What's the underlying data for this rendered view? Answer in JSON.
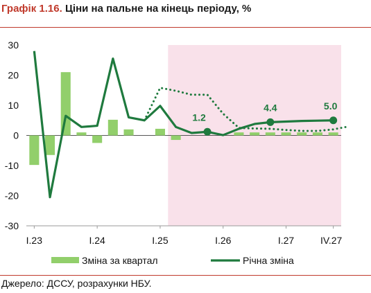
{
  "header": {
    "label": "Графік 1.16.",
    "title": "Ціни на пальне на кінець періоду, %"
  },
  "footer": {
    "source": "Джерело: ДССУ, розрахунки НБУ."
  },
  "colors": {
    "bar": "#92cf6b",
    "line": "#1f7a3e",
    "forecast_bg": "#f9e1ea",
    "rule": "#c0392b"
  },
  "chart_data": {
    "type": "bar+line",
    "ylim": [
      -30,
      30
    ],
    "yticks": [
      -30,
      -20,
      -10,
      0,
      10,
      20,
      30
    ],
    "x_tick_labels": [
      "I.23",
      "I.24",
      "I.25",
      "I.26",
      "I.27",
      "IV.27"
    ],
    "x_tick_positions": [
      0,
      4,
      8,
      12,
      16,
      19
    ],
    "forecast_start_index": 9,
    "series": [
      {
        "name": "Зміна за квартал",
        "kind": "bar",
        "values": [
          -9.8,
          -6.5,
          21.0,
          1.0,
          -2.5,
          5.2,
          2.0,
          0,
          2.2,
          -1.5,
          0,
          0,
          0,
          1.0,
          1.0,
          1.0,
          1.0,
          1.0,
          1.0,
          1.0
        ]
      },
      {
        "name": "Річна зміна",
        "kind": "line",
        "values": [
          28.0,
          -20.5,
          6.5,
          2.8,
          3.2,
          25.5,
          6.0,
          5.0,
          9.8,
          2.8,
          0.8,
          1.2,
          0.1,
          2.2,
          3.8,
          4.4,
          4.6,
          4.8,
          4.9,
          5.0
        ]
      },
      {
        "kind": "dotted",
        "x_start": 7,
        "values": [
          5.0,
          15.8,
          14.8,
          13.5,
          13.5,
          7.2,
          2.5,
          2.3,
          2.2,
          1.8,
          1.5,
          1.5,
          2.0,
          3.0
        ]
      }
    ],
    "annotations": [
      {
        "index": 11,
        "text": "1.2"
      },
      {
        "index": 15,
        "text": "4.4"
      },
      {
        "index": 19,
        "text": "5.0"
      }
    ],
    "legend": [
      "Зміна за квартал",
      "Річна зміна"
    ]
  }
}
